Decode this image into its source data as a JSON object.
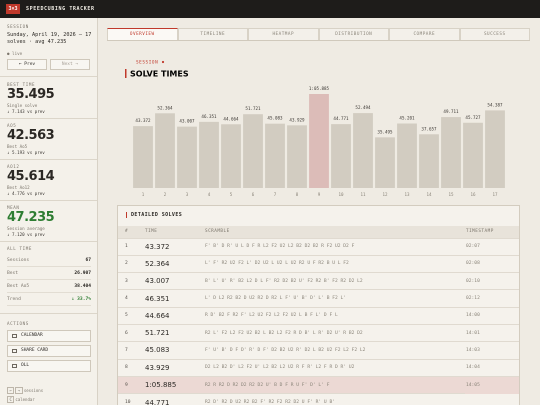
{
  "app": {
    "brand": {
      "badge": "3×3",
      "title": "SPEEDCUBING TRACKER"
    },
    "sidebar": {
      "session_label": "SESSION",
      "session_info": "Sunday, April 19, 2026 — 17 solves · avg 47.235",
      "status": "● live",
      "prev": "← Prev",
      "next": "Next →",
      "stats": [
        {
          "label": "BEST TIME",
          "value": "35.495",
          "caption": "Single solve",
          "delta": "↓ 7.143 vs prev"
        },
        {
          "label": "AO5",
          "value": "42.563",
          "caption": "Best Ao5",
          "delta": "↓ 5.193 vs prev"
        },
        {
          "label": "AO12",
          "value": "45.614",
          "caption": "Best Ao12",
          "delta": "↓ 4.776 vs prev"
        },
        {
          "label": "MEAN",
          "value": "47.235",
          "caption": "Session average",
          "delta": "↓ 7.120 vs prev"
        }
      ],
      "all_time_label": "ALL TIME",
      "all_time": [
        {
          "label": "Sessions",
          "value": "67"
        },
        {
          "label": "Best",
          "value": "26.907"
        },
        {
          "label": "Best Ao5",
          "value": "38.404"
        },
        {
          "label": "Trend",
          "value": "↓ 33.7%"
        }
      ],
      "actions_label": "ACTIONS",
      "actions": [
        "CALENDAR",
        "SHARE CARD",
        "OLL"
      ],
      "shortcuts": [
        {
          "keys": [
            "←",
            "→"
          ],
          "label": "sessions"
        },
        {
          "keys": [
            "C"
          ],
          "label": "calendar"
        }
      ]
    },
    "tabs": [
      "OVERVIEW",
      "TIMELINE",
      "HEATMAP",
      "DISTRIBUTION",
      "COMPARE",
      "SUCCESS"
    ],
    "table": {
      "title": "DETAILED SOLVES",
      "columns": [
        "#",
        "TIME",
        "SCRAMBLE",
        "TIMESTAMP"
      ],
      "rows": [
        [
          "1",
          "43.372",
          "F' B' D R' U L D F R L2 F2 U2 L2 B2 D2 B2 R F2 U2 D2 F",
          "02:07"
        ],
        [
          "2",
          "52.364",
          "L' F' R2 U2 F2 L' D2 U2 L U2 L U2 R2 U F R2 B U L F2",
          "02:08"
        ],
        [
          "3",
          "43.007",
          "B' L' U' R' B2 L2 D L F' R2 D2 B2 U' F2 R2 B' F2 R2 D2 L2",
          "02:10"
        ],
        [
          "4",
          "46.351",
          "L' D L2 R2 B2 D U2 R2 D R2 L F' U' B' D' L' B F2 L'",
          "02:12"
        ],
        [
          "5",
          "44.664",
          "R D' B2 F R2 F' L2 U2 F2 L2 F2 U2 L B F L' D F L",
          "14:00"
        ],
        [
          "6",
          "51.721",
          "R2 L' F2 L2 F2 U2 B2 L B2 L2 F2 R D B' L R' D2 U' R B2 D2",
          "14:01"
        ],
        [
          "7",
          "45.083",
          "F' U' B' D F D' R' D F' D2 B2 U2 R' D2 L B2 U2 F2 L2 F2 L2",
          "14:03"
        ],
        [
          "8",
          "43.929",
          "D2 L2 B2 D' L2 F2 U' L2 B2 L2 U2 R F R' L2 F R D R' U2",
          "14:04"
        ],
        [
          "9",
          "1:05.885",
          "R2 R R2 D R2 D2 R2 D2 U' B D F R U F' D' L' F",
          "14:05"
        ],
        [
          "10",
          "44.771",
          "R2 D' R2 D U2 R2 B2 F' R2 F2 R2 D2 U F' R' U B'"
        ]
      ]
    }
  },
  "chart_data": {
    "type": "bar",
    "subtitle": "SESSION",
    "title": "SOLVE TIMES",
    "categories": [
      "1",
      "2",
      "3",
      "4",
      "5",
      "6",
      "7",
      "8",
      "9",
      "10",
      "11",
      "12",
      "13",
      "14",
      "15",
      "16",
      "17"
    ],
    "values": [
      43.372,
      52.364,
      43.007,
      46.351,
      44.664,
      51.721,
      45.083,
      43.929,
      65.885,
      44.771,
      52.494,
      35.495,
      45.201,
      37.657,
      49.711,
      45.727,
      54.387
    ],
    "value_labels": [
      "43.372",
      "52.364",
      "43.007",
      "46.351",
      "44.664",
      "51.721",
      "45.083",
      "43.929",
      "1:05.885",
      "44.771",
      "52.494",
      "35.495",
      "45.201",
      "37.657",
      "49.711",
      "45.727",
      "54.387"
    ],
    "colors": [
      "#d2ccc1",
      "#d2ccc1",
      "#d2ccc1",
      "#d2ccc1",
      "#d2ccc1",
      "#d2ccc1",
      "#d2ccc1",
      "#d2ccc1",
      "#dcbcb8",
      "#d2ccc1",
      "#d2ccc1",
      "#d2ccc1",
      "#d2ccc1",
      "#d2ccc1",
      "#d2ccc1",
      "#d2ccc1",
      "#d2ccc1"
    ]
  }
}
